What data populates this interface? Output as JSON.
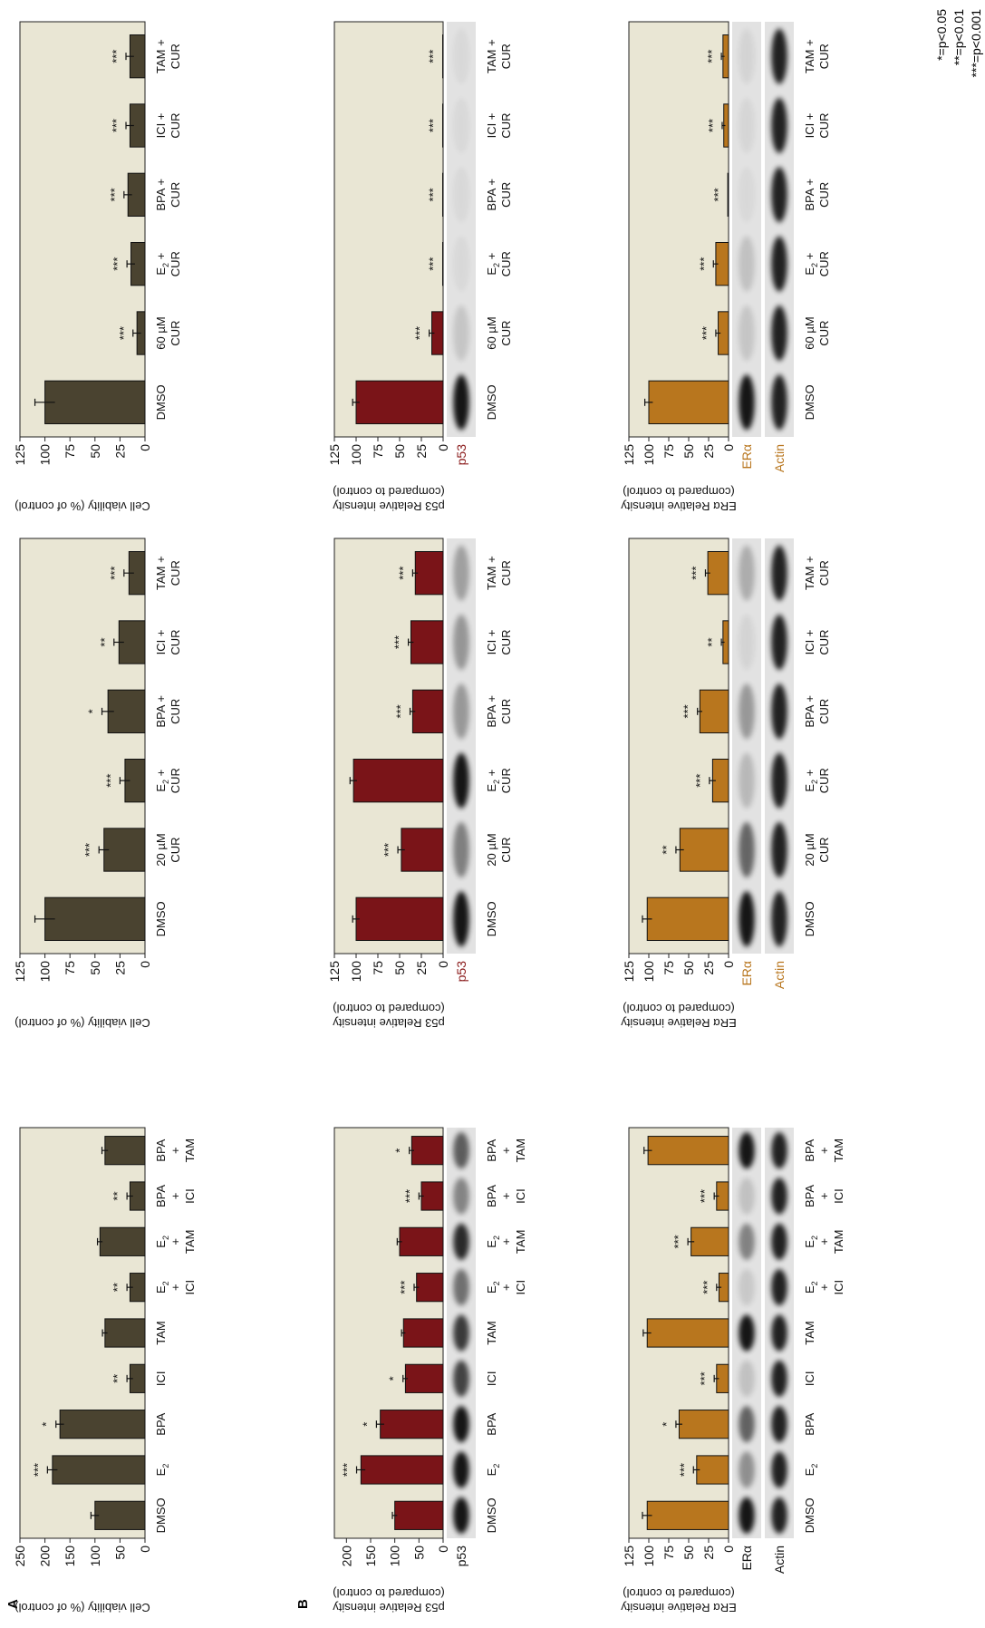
{
  "figure": {
    "panel_letters": [
      "A",
      "B"
    ],
    "significance_legend": [
      "*=p<0.05",
      "**=p<0.01",
      "***=p<0.001"
    ]
  },
  "colors": {
    "plot_bg": "#e9e6d4",
    "viability_bar": "#4a4330",
    "p53_bar": "#7a1418",
    "era_bar": "#b8761e",
    "p53_label": "#8a1a1a",
    "era_label": "#b8761e"
  },
  "chart_data": [
    {
      "id": "A1",
      "type": "bar",
      "ylabel": "Cell viability (% of control)",
      "ylim": [
        0,
        250
      ],
      "yticks": [
        0,
        50,
        100,
        150,
        200,
        250
      ],
      "categories": [
        [
          "DMSO"
        ],
        [
          "E2"
        ],
        [
          "BPA"
        ],
        [
          "ICI"
        ],
        [
          "TAM"
        ],
        [
          "E2",
          "+",
          "ICI"
        ],
        [
          "E2",
          "+",
          "TAM"
        ],
        [
          "BPA",
          "+",
          "ICI"
        ],
        [
          "BPA",
          "+",
          "TAM"
        ]
      ],
      "values": [
        100,
        185,
        170,
        30,
        80,
        30,
        90,
        30,
        80
      ],
      "errors": [
        8,
        10,
        8,
        6,
        5,
        6,
        5,
        6,
        6
      ],
      "significance": [
        "",
        "***",
        "*",
        "**",
        "",
        "**",
        "",
        "**",
        ""
      ]
    },
    {
      "id": "A2",
      "type": "bar",
      "ylabel": "Cell viability (% of control)",
      "ylim": [
        0,
        125
      ],
      "yticks": [
        0,
        25,
        50,
        75,
        100,
        125
      ],
      "categories": [
        [
          "DMSO"
        ],
        [
          "20 µM",
          "CUR"
        ],
        [
          "E2 +",
          "CUR"
        ],
        [
          "BPA +",
          "CUR"
        ],
        [
          "ICI +",
          "CUR"
        ],
        [
          "TAM +",
          "CUR"
        ]
      ],
      "values": [
        100,
        41,
        20,
        37,
        26,
        16
      ],
      "errors": [
        10,
        5,
        5,
        6,
        5,
        5
      ],
      "significance": [
        "",
        "***",
        "***",
        "*",
        "**",
        "***"
      ]
    },
    {
      "id": "A3",
      "type": "bar",
      "ylabel": "Cell viability (% of control)",
      "ylim": [
        0,
        125
      ],
      "yticks": [
        0,
        25,
        50,
        75,
        100,
        125
      ],
      "categories": [
        [
          "DMSO"
        ],
        [
          "60 µM",
          "CUR"
        ],
        [
          "E2 +",
          "CUR"
        ],
        [
          "BPA +",
          "CUR"
        ],
        [
          "ICI +",
          "CUR"
        ],
        [
          "TAM +",
          "CUR"
        ]
      ],
      "values": [
        100,
        8,
        14,
        17,
        15,
        15
      ],
      "errors": [
        10,
        4,
        4,
        4,
        4,
        4
      ],
      "significance": [
        "",
        "***",
        "***",
        "***",
        "***",
        "***"
      ]
    },
    {
      "id": "B1",
      "type": "bar",
      "ylabel": [
        "p53 Relative intensity",
        "(compared to control)"
      ],
      "ylim": [
        0,
        225
      ],
      "yticks": [
        0,
        50,
        100,
        150,
        200
      ],
      "categories": [
        [
          "DMSO"
        ],
        [
          "E2"
        ],
        [
          "BPA"
        ],
        [
          "ICI"
        ],
        [
          "TAM"
        ],
        [
          "E2",
          "+",
          "ICI"
        ],
        [
          "E2",
          "+",
          "TAM"
        ],
        [
          "BPA",
          "+",
          "ICI"
        ],
        [
          "BPA",
          "+",
          "TAM"
        ]
      ],
      "values": [
        100,
        170,
        130,
        78,
        82,
        55,
        90,
        45,
        65
      ],
      "errors": [
        5,
        9,
        8,
        5,
        4,
        5,
        5,
        5,
        5
      ],
      "significance": [
        "",
        "***",
        "*",
        "*",
        "",
        "***",
        "",
        "***",
        "*"
      ],
      "blot_label": "p53"
    },
    {
      "id": "B2",
      "type": "bar",
      "ylabel": [
        "p53 Relative intensity",
        "(compared to control)"
      ],
      "ylim": [
        0,
        125
      ],
      "yticks": [
        0,
        25,
        50,
        75,
        100,
        125
      ],
      "categories": [
        [
          "DMSO"
        ],
        [
          "20 µM",
          "CUR"
        ],
        [
          "E2 +",
          "CUR"
        ],
        [
          "BPA +",
          "CUR"
        ],
        [
          "ICI +",
          "CUR"
        ],
        [
          "TAM +",
          "CUR"
        ]
      ],
      "values": [
        100,
        48,
        103,
        35,
        37,
        32
      ],
      "errors": [
        4,
        4,
        4,
        3,
        3,
        3
      ],
      "significance": [
        "",
        "***",
        "",
        "***",
        "***",
        "***"
      ],
      "blot_label": "p53"
    },
    {
      "id": "B3",
      "type": "bar",
      "ylabel": [
        "p53 Relative intensity",
        "(compared to control)"
      ],
      "ylim": [
        0,
        125
      ],
      "yticks": [
        0,
        25,
        50,
        75,
        100,
        125
      ],
      "categories": [
        [
          "DMSO"
        ],
        [
          "60 µM",
          "CUR"
        ],
        [
          "E2 +",
          "CUR"
        ],
        [
          "BPA +",
          "CUR"
        ],
        [
          "ICI +",
          "CUR"
        ],
        [
          "TAM +",
          "CUR"
        ]
      ],
      "values": [
        100,
        13,
        0.5,
        0.5,
        0.5,
        0.5
      ],
      "errors": [
        4,
        3,
        0,
        0,
        0,
        0
      ],
      "significance": [
        "",
        "***",
        "***",
        "***",
        "***",
        "***"
      ],
      "blot_label": "p53"
    },
    {
      "id": "B4",
      "type": "bar",
      "ylabel": [
        "ERα Relative intensity",
        "(compared to control)"
      ],
      "ylim": [
        0,
        125
      ],
      "yticks": [
        0,
        25,
        50,
        75,
        100,
        125
      ],
      "categories": [
        [
          "DMSO"
        ],
        [
          "E2"
        ],
        [
          "BPA"
        ],
        [
          "ICI"
        ],
        [
          "TAM"
        ],
        [
          "E2",
          "+",
          "ICI"
        ],
        [
          "E2",
          "+",
          "TAM"
        ],
        [
          "BPA",
          "+",
          "ICI"
        ],
        [
          "BPA",
          "+",
          "TAM"
        ]
      ],
      "values": [
        102,
        40,
        62,
        15,
        102,
        12,
        47,
        15,
        101
      ],
      "errors": [
        6,
        4,
        4,
        3,
        5,
        3,
        4,
        3,
        5
      ],
      "significance": [
        "",
        "***",
        "*",
        "***",
        "",
        "***",
        "***",
        "***",
        ""
      ],
      "blot_labels": [
        "ERα",
        "Actin"
      ]
    },
    {
      "id": "B5",
      "type": "bar",
      "ylabel": [
        "ERα Relative intensity",
        "(compared to control)"
      ],
      "ylim": [
        0,
        125
      ],
      "yticks": [
        0,
        25,
        50,
        75,
        100,
        125
      ],
      "categories": [
        [
          "DMSO"
        ],
        [
          "20 µM",
          "CUR"
        ],
        [
          "E2 +",
          "CUR"
        ],
        [
          "BPA +",
          "CUR"
        ],
        [
          "ICI +",
          "CUR"
        ],
        [
          "TAM +",
          "CUR"
        ]
      ],
      "values": [
        102,
        61,
        20,
        36,
        7,
        26
      ],
      "errors": [
        6,
        5,
        4,
        3,
        2,
        3
      ],
      "significance": [
        "",
        "**",
        "***",
        "***",
        "**",
        "***"
      ],
      "blot_labels": [
        "ERα",
        "Actin"
      ]
    },
    {
      "id": "B6",
      "type": "bar",
      "ylabel": [
        "ERα Relative intensity",
        "(compared to control)"
      ],
      "ylim": [
        0,
        125
      ],
      "yticks": [
        0,
        25,
        50,
        75,
        100,
        125
      ],
      "categories": [
        [
          "DMSO"
        ],
        [
          "60 µM",
          "CUR"
        ],
        [
          "E2 +",
          "CUR"
        ],
        [
          "BPA +",
          "CUR"
        ],
        [
          "ICI +",
          "CUR"
        ],
        [
          "TAM +",
          "CUR"
        ]
      ],
      "values": [
        100,
        13,
        16,
        1,
        6,
        7
      ],
      "errors": [
        5,
        3,
        3,
        0,
        2,
        2
      ],
      "significance": [
        "",
        "***",
        "***",
        "***",
        "***",
        "***"
      ],
      "blot_labels": [
        "ERα",
        "Actin"
      ]
    }
  ]
}
